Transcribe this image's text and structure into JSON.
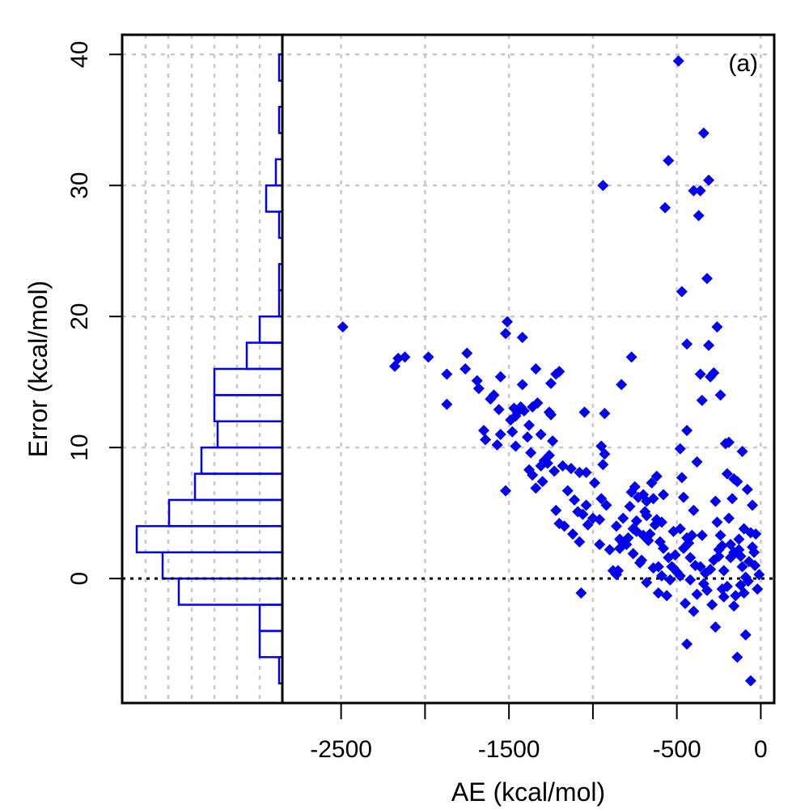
{
  "chart_data": {
    "type": "scatter",
    "panel_label": "(a)",
    "xlabel": "AE (kcal/mol)",
    "ylabel": "Error (kcal/mol)",
    "xlim": [
      -2850,
      80
    ],
    "ylim": [
      -9.5,
      41.5
    ],
    "x_ticks": [
      -2500,
      -1500,
      -500,
      0
    ],
    "x_minor_ticks": [
      -2500,
      -2000,
      -1500,
      -1000,
      -500,
      0
    ],
    "y_ticks": [
      0,
      10,
      20,
      30,
      40
    ],
    "grid": true,
    "zero_line": 0,
    "marker_color": "#0000ee",
    "histogram_color": "#0000ee",
    "histogram": {
      "orientation": "horizontal",
      "bin_width": 2,
      "bins": [
        {
          "from": -8,
          "to": -6,
          "count": 1
        },
        {
          "from": -6,
          "to": -4,
          "count": 7
        },
        {
          "from": -4,
          "to": -2,
          "count": 7
        },
        {
          "from": -2,
          "to": 0,
          "count": 32
        },
        {
          "from": 0,
          "to": 2,
          "count": 37
        },
        {
          "from": 2,
          "to": 4,
          "count": 45
        },
        {
          "from": 4,
          "to": 6,
          "count": 35
        },
        {
          "from": 6,
          "to": 8,
          "count": 27
        },
        {
          "from": 8,
          "to": 10,
          "count": 25
        },
        {
          "from": 10,
          "to": 12,
          "count": 20
        },
        {
          "from": 12,
          "to": 14,
          "count": 21
        },
        {
          "from": 14,
          "to": 16,
          "count": 21
        },
        {
          "from": 16,
          "to": 18,
          "count": 11
        },
        {
          "from": 18,
          "to": 20,
          "count": 7
        },
        {
          "from": 20,
          "to": 22,
          "count": 1
        },
        {
          "from": 22,
          "to": 24,
          "count": 1
        },
        {
          "from": 24,
          "to": 26,
          "count": 0
        },
        {
          "from": 26,
          "to": 28,
          "count": 1
        },
        {
          "from": 28,
          "to": 30,
          "count": 5
        },
        {
          "from": 30,
          "to": 32,
          "count": 2
        },
        {
          "from": 32,
          "to": 34,
          "count": 0
        },
        {
          "from": 34,
          "to": 36,
          "count": 1
        },
        {
          "from": 36,
          "to": 38,
          "count": 0
        },
        {
          "from": 38,
          "to": 40,
          "count": 1
        }
      ]
    },
    "points": [
      [
        -2490,
        19.2
      ],
      [
        -2180,
        16.2
      ],
      [
        -2160,
        16.8
      ],
      [
        -2120,
        16.9
      ],
      [
        -1980,
        16.9
      ],
      [
        -1870,
        15.6
      ],
      [
        -1870,
        13.3
      ],
      [
        -1760,
        16.0
      ],
      [
        -1750,
        17.2
      ],
      [
        -1690,
        15.1
      ],
      [
        -1680,
        14.5
      ],
      [
        -1650,
        11.3
      ],
      [
        -1610,
        13.7
      ],
      [
        -1590,
        14.0
      ],
      [
        -1570,
        10.2
      ],
      [
        -1550,
        11.0
      ],
      [
        -1550,
        15.4
      ],
      [
        -1520,
        18.7
      ],
      [
        -1510,
        19.6
      ],
      [
        -1520,
        6.7
      ],
      [
        -1490,
        12.1
      ],
      [
        -1480,
        11.2
      ],
      [
        -1470,
        13.0
      ],
      [
        -1460,
        10.1
      ],
      [
        -1450,
        12.7
      ],
      [
        -1430,
        13.1
      ],
      [
        -1420,
        18.4
      ],
      [
        -1420,
        14.8
      ],
      [
        -1410,
        12.8
      ],
      [
        -1390,
        10.8
      ],
      [
        -1380,
        8.3
      ],
      [
        -1370,
        9.6
      ],
      [
        -1360,
        7.9
      ],
      [
        -1360,
        13.1
      ],
      [
        -1340,
        16.0
      ],
      [
        -1340,
        6.9
      ],
      [
        -1330,
        13.4
      ],
      [
        -1310,
        8.6
      ],
      [
        -1310,
        11.0
      ],
      [
        -1300,
        7.4
      ],
      [
        -1290,
        9.0
      ],
      [
        -1270,
        8.8
      ],
      [
        -1260,
        12.7
      ],
      [
        -1250,
        12.5
      ],
      [
        -1250,
        14.9
      ],
      [
        -1240,
        10.5
      ],
      [
        -1230,
        8.2
      ],
      [
        -1220,
        15.6
      ],
      [
        -1220,
        5.2
      ],
      [
        -1200,
        15.8
      ],
      [
        -1200,
        4.2
      ],
      [
        -1180,
        8.6
      ],
      [
        -1170,
        4.0
      ],
      [
        -1130,
        8.4
      ],
      [
        -1120,
        3.4
      ],
      [
        -1110,
        6.0
      ],
      [
        -1090,
        5.1
      ],
      [
        -1080,
        2.8
      ],
      [
        -1080,
        8.1
      ],
      [
        -1070,
        -1.1
      ],
      [
        -1060,
        4.9
      ],
      [
        -1050,
        12.7
      ],
      [
        -1040,
        5.6
      ],
      [
        -1040,
        8.1
      ],
      [
        -1030,
        4.1
      ],
      [
        -990,
        7.3
      ],
      [
        -960,
        4.5
      ],
      [
        -960,
        2.6
      ],
      [
        -950,
        10.1
      ],
      [
        -950,
        6.1
      ],
      [
        -940,
        8.7
      ],
      [
        -940,
        30.0
      ],
      [
        -930,
        12.6
      ],
      [
        -930,
        9.5
      ],
      [
        -920,
        5.6
      ],
      [
        -880,
        0.6
      ],
      [
        -860,
        0.3
      ],
      [
        -850,
        0.6
      ],
      [
        -840,
        2.3
      ],
      [
        -830,
        14.8
      ],
      [
        -820,
        4.6
      ],
      [
        -790,
        3.1
      ],
      [
        -780,
        5.5
      ],
      [
        -770,
        16.9
      ],
      [
        -770,
        6.6
      ],
      [
        -760,
        3.8
      ],
      [
        -750,
        7.0
      ],
      [
        -740,
        4.4
      ],
      [
        -730,
        6.2
      ],
      [
        -710,
        1.4
      ],
      [
        -700,
        3.3
      ],
      [
        -690,
        5.1
      ],
      [
        -680,
        4.8
      ],
      [
        -680,
        -0.3
      ],
      [
        -670,
        2.9
      ],
      [
        -650,
        7.3
      ],
      [
        -640,
        6.1
      ],
      [
        -630,
        4.1
      ],
      [
        -620,
        7.8
      ],
      [
        -610,
        0.9
      ],
      [
        -600,
        2.8
      ],
      [
        -590,
        0.2
      ],
      [
        -580,
        6.4
      ],
      [
        -570,
        28.3
      ],
      [
        -550,
        31.9
      ],
      [
        -550,
        1.6
      ],
      [
        -540,
        -0.1
      ],
      [
        -530,
        0.9
      ],
      [
        -520,
        3.6
      ],
      [
        -510,
        1.8
      ],
      [
        -500,
        0.5
      ],
      [
        -490,
        39.5
      ],
      [
        -480,
        9.9
      ],
      [
        -480,
        3.8
      ],
      [
        -470,
        21.9
      ],
      [
        -470,
        7.7
      ],
      [
        -460,
        6.2
      ],
      [
        -450,
        -1.9
      ],
      [
        -440,
        11.3
      ],
      [
        -440,
        17.9
      ],
      [
        -430,
        2.7
      ],
      [
        -420,
        -0.1
      ],
      [
        -410,
        3.3
      ],
      [
        -400,
        29.6
      ],
      [
        -400,
        5.2
      ],
      [
        -390,
        1.0
      ],
      [
        -380,
        8.9
      ],
      [
        -370,
        27.7
      ],
      [
        -360,
        29.6
      ],
      [
        -360,
        15.6
      ],
      [
        -350,
        3.3
      ],
      [
        -350,
        13.6
      ],
      [
        -340,
        34.0
      ],
      [
        -330,
        0.4
      ],
      [
        -320,
        22.9
      ],
      [
        -310,
        30.4
      ],
      [
        -310,
        17.8
      ],
      [
        -300,
        15.4
      ],
      [
        -290,
        -2.0
      ],
      [
        -280,
        15.7
      ],
      [
        -270,
        5.9
      ],
      [
        -260,
        19.2
      ],
      [
        -260,
        4.3
      ],
      [
        -250,
        1.7
      ],
      [
        -240,
        14.0
      ],
      [
        -230,
        2.5
      ],
      [
        -220,
        0.6
      ],
      [
        -210,
        10.3
      ],
      [
        -200,
        8.0
      ],
      [
        -190,
        10.4
      ],
      [
        -180,
        2.6
      ],
      [
        -170,
        6.1
      ],
      [
        -160,
        7.6
      ],
      [
        -150,
        -1.3
      ],
      [
        -140,
        7.4
      ],
      [
        -130,
        3.0
      ],
      [
        -120,
        1.7
      ],
      [
        -110,
        9.7
      ],
      [
        -100,
        3.8
      ],
      [
        -90,
        0.1
      ],
      [
        -80,
        6.8
      ],
      [
        -70,
        1.3
      ],
      [
        -60,
        3.5
      ],
      [
        -50,
        5.6
      ],
      [
        -40,
        2.0
      ],
      [
        -30,
        3.4
      ],
      [
        -20,
        -0.8
      ],
      [
        -10,
        0.3
      ],
      [
        -60,
        -7.8
      ],
      [
        -140,
        -6.0
      ],
      [
        -440,
        -5.0
      ],
      [
        -90,
        -4.3
      ],
      [
        -270,
        -3.7
      ],
      [
        -160,
        -2.1
      ],
      [
        -220,
        -1.4
      ],
      [
        -120,
        -0.5
      ],
      [
        -340,
        -0.4
      ],
      [
        -380,
        -1.2
      ],
      [
        -460,
        2.3
      ],
      [
        -560,
        -1.3
      ],
      [
        -610,
        -1.1
      ],
      [
        -660,
        3.4
      ],
      [
        -720,
        1.2
      ],
      [
        -800,
        2.6
      ],
      [
        -360,
        0.9
      ],
      [
        -240,
        3.3
      ],
      [
        -180,
        1.6
      ],
      [
        -100,
        -1.1
      ],
      [
        -50,
        2.4
      ],
      [
        -230,
        -0.8
      ],
      [
        -300,
        0.7
      ],
      [
        -400,
        -2.5
      ],
      [
        -520,
        0.8
      ],
      [
        -620,
        4.5
      ],
      [
        -700,
        6.4
      ],
      [
        -760,
        1.9
      ],
      [
        -840,
        3.0
      ],
      [
        -900,
        2.2
      ],
      [
        -1000,
        4.6
      ],
      [
        -1150,
        6.7
      ],
      [
        -1260,
        9.4
      ],
      [
        -1380,
        11.7
      ],
      [
        -1460,
        12.4
      ],
      [
        -1560,
        12.9
      ],
      [
        -1640,
        10.6
      ],
      [
        -160,
        2.0
      ],
      [
        -200,
        -0.6
      ],
      [
        -280,
        1.4
      ],
      [
        -420,
        1.6
      ],
      [
        -480,
        0.2
      ],
      [
        -580,
        2.3
      ],
      [
        -640,
        0.8
      ],
      [
        -740,
        3.6
      ],
      [
        -860,
        4.0
      ],
      [
        -130,
        2.2
      ],
      [
        -75,
        -0.2
      ],
      [
        -35,
        1.0
      ],
      [
        -110,
        0.9
      ],
      [
        -190,
        4.6
      ],
      [
        -250,
        2.2
      ],
      [
        -320,
        -0.9
      ],
      [
        -440,
        3.1
      ],
      [
        -590,
        4.3
      ],
      [
        -680,
        5.9
      ],
      [
        -820,
        2.7
      ]
    ]
  }
}
